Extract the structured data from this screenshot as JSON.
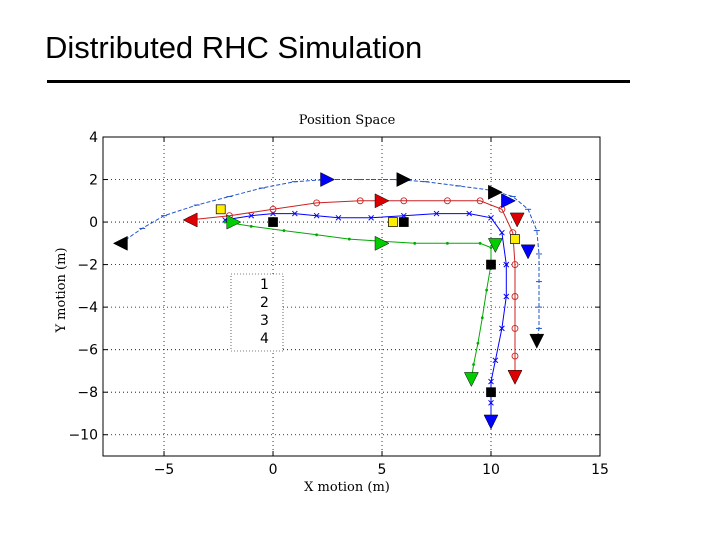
{
  "slide": {
    "title": "Distributed RHC Simulation"
  },
  "chart_data": {
    "type": "line",
    "title": "Position Space",
    "xlabel": "X motion (m)",
    "ylabel": "Y motion (m)",
    "xlim": [
      -7.8,
      15
    ],
    "ylim": [
      -11,
      4
    ],
    "xticks": [
      -5,
      0,
      5,
      10,
      15
    ],
    "yticks": [
      4,
      2,
      0,
      -2,
      -4,
      -6,
      -8,
      -10
    ],
    "xtick_labels": [
      "−5",
      "0",
      "5",
      "10",
      "15"
    ],
    "ytick_labels": [
      "4",
      "2",
      "0",
      "−2",
      "−4",
      "−6",
      "−8",
      "−10"
    ],
    "grid": true,
    "legend_position": "left",
    "series": [
      {
        "name": "1",
        "marker": "x",
        "color": "#0000ff",
        "x": [
          -2.2,
          -1,
          0,
          1,
          2,
          3,
          4.5,
          6,
          7.5,
          9,
          10,
          10.5,
          10.7,
          10.7,
          10.5,
          10.2,
          10,
          10,
          10
        ],
        "y": [
          0.1,
          0.3,
          0.4,
          0.4,
          0.3,
          0.2,
          0.2,
          0.3,
          0.4,
          0.4,
          0.2,
          -0.5,
          -2,
          -3.5,
          -5,
          -6.5,
          -7.5,
          -8.5,
          -9.4
        ]
      },
      {
        "name": "2",
        "marker": "o",
        "color": "#cc2222",
        "x": [
          -3.8,
          -2,
          0,
          2,
          4,
          6,
          8,
          9.5,
          10.5,
          11,
          11.1,
          11.1,
          11.1,
          11.1,
          11.1
        ],
        "y": [
          0.1,
          0.3,
          0.6,
          0.9,
          1.0,
          1.0,
          1.0,
          1.0,
          0.6,
          -0.5,
          -2,
          -3.5,
          -5,
          -6.3,
          -7.3
        ]
      },
      {
        "name": "3",
        "marker": ".",
        "color": "#00aa00",
        "x": [
          -2.2,
          -1,
          0.5,
          2,
          3.5,
          5,
          6.5,
          8,
          9.5,
          10,
          10,
          9.8,
          9.6,
          9.4,
          9.2,
          9.1
        ],
        "y": [
          0,
          -0.2,
          -0.4,
          -0.6,
          -0.8,
          -0.9,
          -1.0,
          -1.0,
          -1.0,
          -1.2,
          -2,
          -3.2,
          -4.5,
          -5.7,
          -6.7,
          -7.4
        ]
      },
      {
        "name": "4",
        "marker": "-",
        "color": "#2255cc",
        "x": [
          -7,
          -6,
          -5,
          -3.5,
          -2,
          -0.5,
          1,
          2.5,
          4,
          5.5,
          7,
          8.5,
          10,
          11,
          11.7,
          12.1,
          12.2,
          12.2,
          12.2,
          12.2,
          12.1
        ],
        "y": [
          -1,
          -0.3,
          0.3,
          0.8,
          1.2,
          1.6,
          1.9,
          2.0,
          2.0,
          2.0,
          1.9,
          1.7,
          1.5,
          1.2,
          0.6,
          -0.4,
          -1.5,
          -2.8,
          -4,
          -5,
          -5.6
        ]
      }
    ],
    "triangles": [
      {
        "x": -7,
        "y": -1,
        "color": "#000000",
        "dir": "left"
      },
      {
        "x": 2.5,
        "y": 2,
        "color": "#0000ff",
        "dir": "right"
      },
      {
        "x": 6,
        "y": 2,
        "color": "#000000",
        "dir": "right"
      },
      {
        "x": 10.2,
        "y": 1.4,
        "color": "#000000",
        "dir": "right"
      },
      {
        "x": -3.8,
        "y": 0.1,
        "color": "#dd0000",
        "dir": "left"
      },
      {
        "x": 5,
        "y": 1,
        "color": "#dd0000",
        "dir": "right"
      },
      {
        "x": 10.8,
        "y": 1,
        "color": "#0000ff",
        "dir": "right"
      },
      {
        "x": -1.8,
        "y": 0,
        "color": "#00cc00",
        "dir": "right"
      },
      {
        "x": 5,
        "y": -1,
        "color": "#00cc00",
        "dir": "right"
      },
      {
        "x": 10.2,
        "y": -1.1,
        "color": "#00cc00",
        "dir": "down"
      },
      {
        "x": 11.2,
        "y": 0.1,
        "color": "#dd0000",
        "dir": "down"
      },
      {
        "x": 11.7,
        "y": -1.4,
        "color": "#0000ff",
        "dir": "down"
      },
      {
        "x": 12.1,
        "y": -5.6,
        "color": "#000000",
        "dir": "down"
      },
      {
        "x": 9.1,
        "y": -7.4,
        "color": "#00cc00",
        "dir": "down"
      },
      {
        "x": 11.1,
        "y": -7.3,
        "color": "#dd0000",
        "dir": "down"
      },
      {
        "x": 10,
        "y": -9.4,
        "color": "#0000ff",
        "dir": "down"
      }
    ],
    "squares": [
      {
        "x": -2.4,
        "y": 0.6,
        "color": "#ffee00"
      },
      {
        "x": 0,
        "y": 0,
        "color": "#000000"
      },
      {
        "x": 5.5,
        "y": 0,
        "color": "#ffee00"
      },
      {
        "x": 6,
        "y": 0,
        "color": "#000000"
      },
      {
        "x": 11.1,
        "y": -0.8,
        "color": "#ffee00"
      },
      {
        "x": 10,
        "y": -2,
        "color": "#000000"
      },
      {
        "x": 10,
        "y": -8,
        "color": "#000000"
      }
    ]
  }
}
